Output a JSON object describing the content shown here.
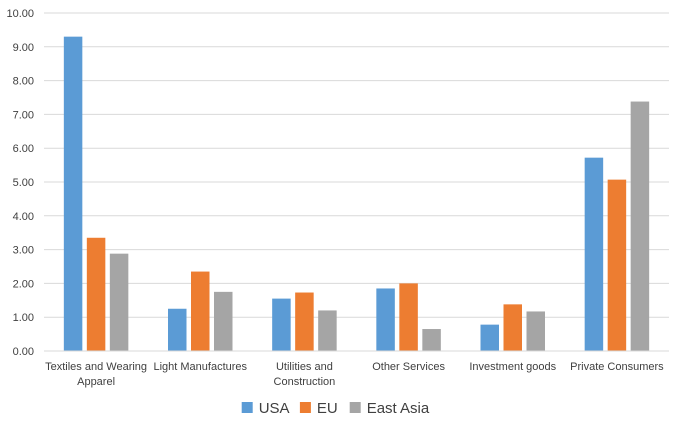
{
  "chart_data": {
    "type": "bar",
    "categories": [
      [
        "Textiles and Wearing",
        "Apparel"
      ],
      [
        "Light Manufactures"
      ],
      [
        "Utilities and",
        "Construction"
      ],
      [
        "Other Services"
      ],
      [
        "Investment goods"
      ],
      [
        "Private Consumers"
      ]
    ],
    "series": [
      {
        "name": "USA",
        "color": "#5B9BD5",
        "values": [
          9.3,
          1.25,
          1.55,
          1.85,
          0.78,
          5.72
        ]
      },
      {
        "name": "EU",
        "color": "#ED7D31",
        "values": [
          3.35,
          2.35,
          1.73,
          2.0,
          1.38,
          5.07
        ]
      },
      {
        "name": "East Asia",
        "color": "#A5A5A5",
        "values": [
          2.88,
          1.75,
          1.2,
          0.65,
          1.17,
          7.38
        ]
      }
    ],
    "ylim": [
      0,
      10
    ],
    "yticks": [
      "0.00",
      "1.00",
      "2.00",
      "3.00",
      "4.00",
      "5.00",
      "6.00",
      "7.00",
      "8.00",
      "9.00",
      "10.00"
    ],
    "grid": true,
    "legend_position": "bottom"
  }
}
